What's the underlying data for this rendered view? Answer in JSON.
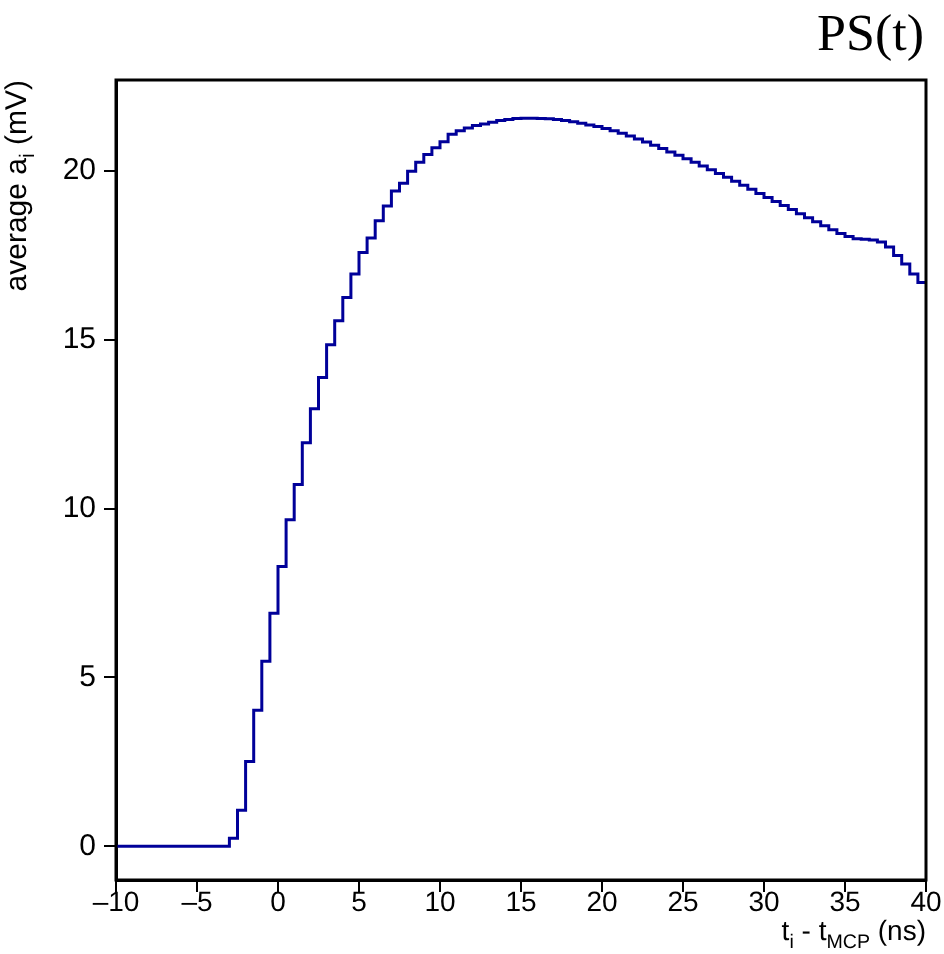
{
  "chart_data": {
    "type": "histogram",
    "title": "PS(t)",
    "xlabel": "t$_{i}$ - t$_{MCP}$ (ns)",
    "ylabel": "average a$_{i}$ (mV)",
    "color": "#000099",
    "bins": [
      -10,
      -9.5,
      -9,
      -8.5,
      -8,
      -7.5,
      -7,
      -6.5,
      -6,
      -5.5,
      -5,
      -4.5,
      -4,
      -3.5,
      -3,
      -2.5,
      -2,
      -1.5,
      -1,
      -0.5,
      0,
      0.5,
      1,
      1.5,
      2,
      2.5,
      3,
      3.5,
      4,
      4.5,
      5,
      5.5,
      6,
      6.5,
      7,
      7.5,
      8,
      8.5,
      9,
      9.5,
      10,
      10.5,
      11,
      11.5,
      12,
      12.5,
      13,
      13.5,
      14,
      14.5,
      15,
      15.5,
      16,
      16.5,
      17,
      17.5,
      18,
      18.5,
      19,
      19.5,
      20,
      20.5,
      21,
      21.5,
      22,
      22.5,
      23,
      23.5,
      24,
      24.5,
      25,
      25.5,
      26,
      26.5,
      27,
      27.5,
      28,
      28.5,
      29,
      29.5,
      30,
      30.5,
      31,
      31.5,
      32,
      32.5,
      33,
      33.5,
      34,
      34.5,
      35,
      35.5,
      36,
      36.5,
      37,
      37.5,
      38,
      38.5,
      39,
      39.5,
      40
    ],
    "values": [
      0,
      0,
      0,
      0,
      0,
      0,
      0,
      0,
      0,
      0,
      0,
      0,
      0,
      0,
      0.24,
      1.07,
      2.51,
      4.03,
      5.48,
      6.9,
      8.29,
      9.67,
      10.72,
      11.95,
      12.96,
      13.89,
      14.86,
      15.57,
      16.26,
      16.95,
      17.59,
      18.02,
      18.53,
      18.97,
      19.41,
      19.64,
      20.0,
      20.26,
      20.49,
      20.69,
      20.87,
      21.09,
      21.2,
      21.28,
      21.35,
      21.4,
      21.45,
      21.5,
      21.53,
      21.56,
      21.57,
      21.57,
      21.56,
      21.55,
      21.53,
      21.5,
      21.46,
      21.42,
      21.37,
      21.32,
      21.26,
      21.2,
      21.12,
      21.04,
      20.95,
      20.86,
      20.77,
      20.67,
      20.57,
      20.47,
      20.37,
      20.26,
      20.15,
      20.04,
      19.93,
      19.82,
      19.7,
      19.58,
      19.46,
      19.34,
      19.22,
      19.1,
      18.98,
      18.86,
      18.74,
      18.62,
      18.5,
      18.38,
      18.26,
      18.15,
      18.06,
      18.0,
      17.98,
      17.96,
      17.9,
      17.75,
      17.5,
      17.25,
      16.95,
      16.7
    ],
    "xlim": [
      -10,
      40
    ],
    "xticks": [
      {
        "value": -10,
        "label": "–10"
      },
      {
        "value": -5,
        "label": "–5"
      },
      0,
      5,
      10,
      15,
      20,
      25,
      30,
      35,
      40
    ],
    "ylim": [
      -1,
      22.7
    ],
    "yticks": [
      0,
      5,
      10,
      15,
      20
    ],
    "grid": false,
    "legend": false
  }
}
